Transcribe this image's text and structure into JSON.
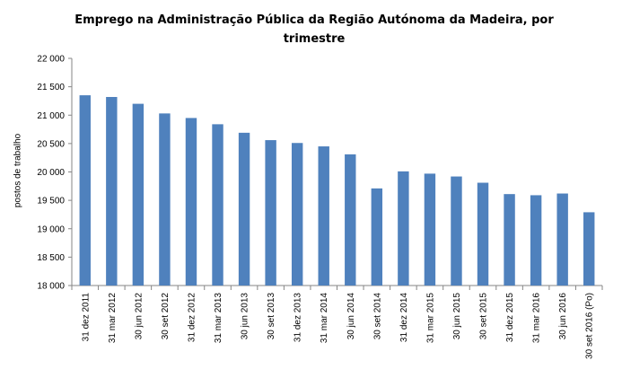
{
  "chart_data": {
    "type": "bar",
    "title": "Emprego na Administração Pública da Região Autónoma da Madeira, por trimestre",
    "xlabel": "",
    "ylabel": "postos de trabalho",
    "ylim": [
      18000,
      22000
    ],
    "ytick_values": [
      18000,
      18500,
      19000,
      19500,
      20000,
      20500,
      21000,
      21500,
      22000
    ],
    "ytick_labels": [
      "18 000",
      "18 500",
      "19 000",
      "19 500",
      "20 000",
      "20 500",
      "21 000",
      "21 500",
      "22 000"
    ],
    "categories": [
      "31 dez 2011",
      "31 mar 2012",
      "30 jun 2012",
      "30 set 2012",
      "31 dez 2012",
      "31 mar 2013",
      "30 jun 2013",
      "30 set 2013",
      "31 dez 2013",
      "31 mar 2014",
      "30 jun 2014",
      "30 set 2014",
      "31 dez 2014",
      "31 mar 2015",
      "30 jun 2015",
      "30 set 2015",
      "31 dez 2015",
      "31 mar 2016",
      "30 jun 2016",
      "30 set 2016 (Po)"
    ],
    "values": [
      21350,
      21320,
      21200,
      21030,
      20950,
      20840,
      20690,
      20560,
      20510,
      20450,
      20310,
      19710,
      20010,
      19970,
      19920,
      19810,
      19610,
      19590,
      19620,
      19290
    ],
    "grid": false,
    "legend": "none",
    "bar_color": "#4F81BD"
  }
}
